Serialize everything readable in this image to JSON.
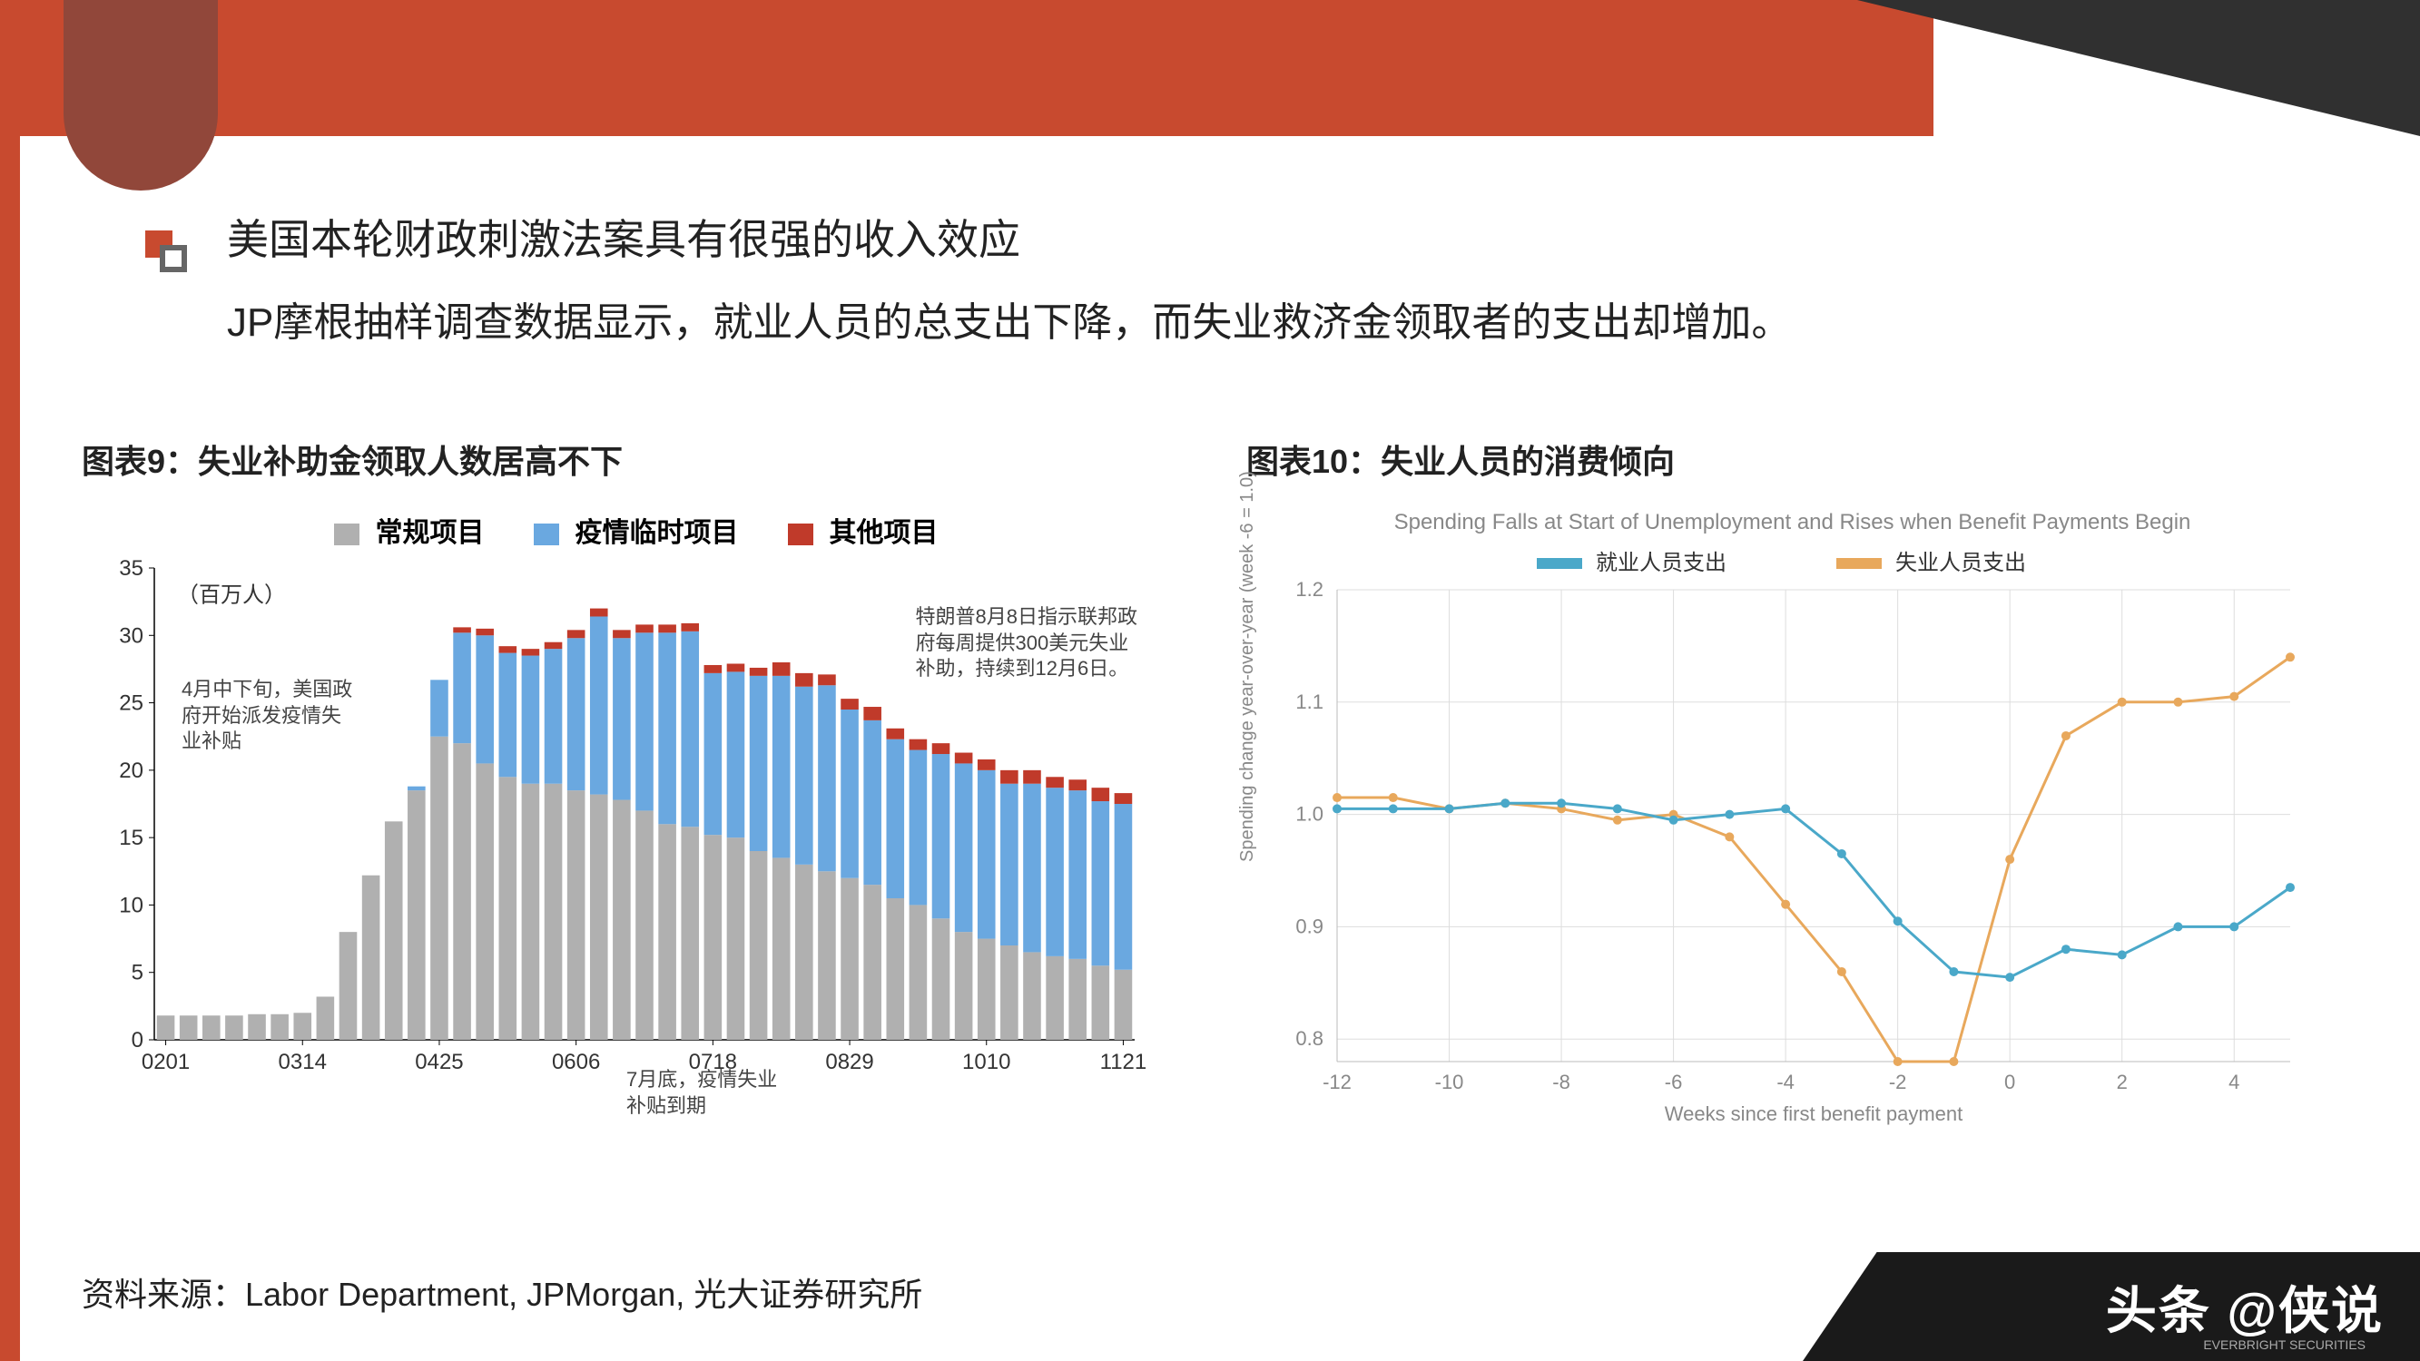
{
  "header": {
    "title": "美国本轮财政刺激法案具有很强的收入效应",
    "subtitle": "JP摩根抽样调查数据显示，就业人员的总支出下降，而失业救济金领取者的支出却增加。"
  },
  "colors": {
    "accent": "#c84a2f",
    "dark": "#303030",
    "notch": "#91473a"
  },
  "chart9": {
    "title": "图表9：失业补助金领取人数居高不下",
    "type": "stacked-bar",
    "unit_label": "（百万人）",
    "legend": [
      {
        "label": "常规项目",
        "color": "#b0b0b0"
      },
      {
        "label": "疫情临时项目",
        "color": "#6aa8e0"
      },
      {
        "label": "其他项目",
        "color": "#c03a2a"
      }
    ],
    "ylim": [
      0,
      35
    ],
    "ytick_step": 5,
    "xticks": [
      "0201",
      "0314",
      "0425",
      "0606",
      "0718",
      "0829",
      "1010",
      "1121"
    ],
    "xtick_every": 6,
    "bar_width": 0.78,
    "data": [
      {
        "x": "0201",
        "a": 1.8,
        "b": 0,
        "c": 0
      },
      {
        "x": "0208",
        "a": 1.8,
        "b": 0,
        "c": 0
      },
      {
        "x": "0215",
        "a": 1.8,
        "b": 0,
        "c": 0
      },
      {
        "x": "0222",
        "a": 1.8,
        "b": 0,
        "c": 0
      },
      {
        "x": "0229",
        "a": 1.9,
        "b": 0,
        "c": 0
      },
      {
        "x": "0307",
        "a": 1.9,
        "b": 0,
        "c": 0
      },
      {
        "x": "0314",
        "a": 2.0,
        "b": 0,
        "c": 0
      },
      {
        "x": "0321",
        "a": 3.2,
        "b": 0,
        "c": 0
      },
      {
        "x": "0328",
        "a": 8.0,
        "b": 0,
        "c": 0
      },
      {
        "x": "0404",
        "a": 12.2,
        "b": 0,
        "c": 0
      },
      {
        "x": "0411",
        "a": 16.2,
        "b": 0,
        "c": 0
      },
      {
        "x": "0418",
        "a": 18.5,
        "b": 0.3,
        "c": 0
      },
      {
        "x": "0425",
        "a": 22.5,
        "b": 4.2,
        "c": 0
      },
      {
        "x": "0502",
        "a": 22.0,
        "b": 8.2,
        "c": 0.4
      },
      {
        "x": "0509",
        "a": 20.5,
        "b": 9.5,
        "c": 0.5
      },
      {
        "x": "0516",
        "a": 19.5,
        "b": 9.2,
        "c": 0.5
      },
      {
        "x": "0523",
        "a": 19.0,
        "b": 9.5,
        "c": 0.5
      },
      {
        "x": "0530",
        "a": 19.0,
        "b": 10.0,
        "c": 0.5
      },
      {
        "x": "0606",
        "a": 18.5,
        "b": 11.3,
        "c": 0.6
      },
      {
        "x": "0613",
        "a": 18.2,
        "b": 13.2,
        "c": 0.6
      },
      {
        "x": "0620",
        "a": 17.8,
        "b": 12.0,
        "c": 0.6
      },
      {
        "x": "0627",
        "a": 17.0,
        "b": 13.2,
        "c": 0.6
      },
      {
        "x": "0704",
        "a": 16.0,
        "b": 14.2,
        "c": 0.6
      },
      {
        "x": "0711",
        "a": 15.8,
        "b": 14.5,
        "c": 0.6
      },
      {
        "x": "0718",
        "a": 15.2,
        "b": 12.0,
        "c": 0.6
      },
      {
        "x": "0725",
        "a": 15.0,
        "b": 12.3,
        "c": 0.6
      },
      {
        "x": "0801",
        "a": 14.0,
        "b": 13.0,
        "c": 0.6
      },
      {
        "x": "0808",
        "a": 13.5,
        "b": 13.5,
        "c": 1.0
      },
      {
        "x": "0815",
        "a": 13.0,
        "b": 13.2,
        "c": 1.0
      },
      {
        "x": "0822",
        "a": 12.5,
        "b": 13.8,
        "c": 0.8
      },
      {
        "x": "0829",
        "a": 12.0,
        "b": 12.5,
        "c": 0.8
      },
      {
        "x": "0905",
        "a": 11.5,
        "b": 12.2,
        "c": 1.0
      },
      {
        "x": "0912",
        "a": 10.5,
        "b": 11.8,
        "c": 0.8
      },
      {
        "x": "0919",
        "a": 10.0,
        "b": 11.5,
        "c": 0.8
      },
      {
        "x": "0926",
        "a": 9.0,
        "b": 12.2,
        "c": 0.8
      },
      {
        "x": "1003",
        "a": 8.0,
        "b": 12.5,
        "c": 0.8
      },
      {
        "x": "1010",
        "a": 7.5,
        "b": 12.5,
        "c": 0.8
      },
      {
        "x": "1017",
        "a": 7.0,
        "b": 12.0,
        "c": 1.0
      },
      {
        "x": "1024",
        "a": 6.5,
        "b": 12.5,
        "c": 1.0
      },
      {
        "x": "1031",
        "a": 6.2,
        "b": 12.5,
        "c": 0.8
      },
      {
        "x": "1107",
        "a": 6.0,
        "b": 12.5,
        "c": 0.8
      },
      {
        "x": "1114",
        "a": 5.5,
        "b": 12.2,
        "c": 1.0
      },
      {
        "x": "1121",
        "a": 5.2,
        "b": 12.3,
        "c": 0.8
      }
    ],
    "annotations": [
      {
        "text_lines": [
          "4月中下旬，美国政",
          "府开始派发疫情失",
          "业补贴"
        ],
        "pos": "left"
      },
      {
        "text_lines": [
          "特朗普8月8日指示联邦政",
          "府每周提供300美元失业",
          "补助，持续到12月6日。"
        ],
        "pos": "right"
      },
      {
        "text_lines": [
          "7月底，疫情失业",
          "补贴到期"
        ],
        "pos": "bottom"
      }
    ]
  },
  "chart10": {
    "title": "图表10：失业人员的消费倾向",
    "subtitle": "Spending Falls at Start of Unemployment and Rises when Benefit Payments Begin",
    "type": "line",
    "legend": [
      {
        "label": "就业人员支出",
        "color": "#4aa8c9"
      },
      {
        "label": "失业人员支出",
        "color": "#e8a85c"
      }
    ],
    "xlabel": "Weeks since first benefit payment",
    "ylabel": "Spending change year-over-year\n(week -6 = 1.0)",
    "xlim": [
      -12,
      5
    ],
    "ylim": [
      0.78,
      1.2
    ],
    "yticks": [
      0.8,
      0.9,
      1.0,
      1.1,
      1.2
    ],
    "xticks": [
      -12,
      -10,
      -8,
      -6,
      -4,
      -2,
      0,
      2,
      4
    ],
    "grid_color": "#dddddd",
    "line_width": 3,
    "marker_style": "circle",
    "marker_size": 5,
    "series": {
      "employed": [
        [
          -12,
          1.005
        ],
        [
          -11,
          1.005
        ],
        [
          -10,
          1.005
        ],
        [
          -9,
          1.01
        ],
        [
          -8,
          1.01
        ],
        [
          -7,
          1.005
        ],
        [
          -6,
          0.995
        ],
        [
          -5,
          1.0
        ],
        [
          -4,
          1.005
        ],
        [
          -3,
          0.965
        ],
        [
          -2,
          0.905
        ],
        [
          -1,
          0.86
        ],
        [
          0,
          0.855
        ],
        [
          1,
          0.88
        ],
        [
          2,
          0.875
        ],
        [
          3,
          0.9
        ],
        [
          4,
          0.9
        ],
        [
          5,
          0.935
        ]
      ],
      "unemployed": [
        [
          -12,
          1.015
        ],
        [
          -11,
          1.015
        ],
        [
          -10,
          1.005
        ],
        [
          -9,
          1.01
        ],
        [
          -8,
          1.005
        ],
        [
          -7,
          0.995
        ],
        [
          -6,
          1.0
        ],
        [
          -5,
          0.98
        ],
        [
          -4,
          0.92
        ],
        [
          -3,
          0.86
        ],
        [
          -2,
          0.78
        ],
        [
          -1,
          0.78
        ],
        [
          0,
          0.96
        ],
        [
          1,
          1.07
        ],
        [
          2,
          1.1
        ],
        [
          3,
          1.1
        ],
        [
          4,
          1.105
        ],
        [
          5,
          1.14
        ]
      ]
    }
  },
  "footer": {
    "source": "资料来源：Labor Department, JPMorgan, 光大证券研究所",
    "badge_main": "头条 @侠说",
    "badge_sub": "EVERBRIGHT SECURITIES"
  }
}
